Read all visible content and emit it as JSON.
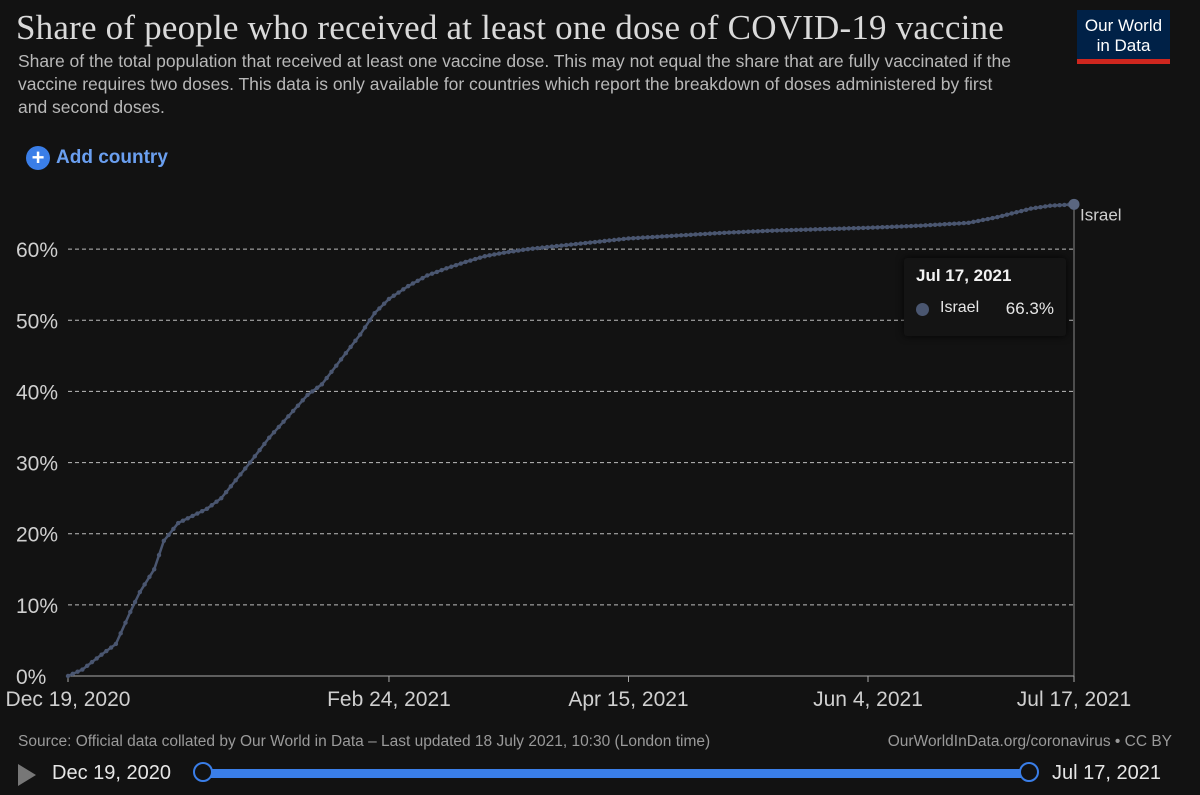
{
  "header": {
    "title": "Share of people who received at least one dose of COVID-19 vaccine",
    "subtitle": "Share of the total population that received at least one vaccine dose. This may not equal the share that are fully vaccinated if the vaccine requires two doses. This data is only available for countries which report the breakdown of doses administered by first and second doses.",
    "logo_line1": "Our World",
    "logo_line2": "in Data"
  },
  "controls": {
    "add_country_label": "Add country",
    "plus_icon": "plus-circle-icon"
  },
  "tooltip": {
    "date": "Jul 17, 2021",
    "series": "Israel",
    "value": "66.3%"
  },
  "footer": {
    "source": "Source: Official data collated by Our World in Data – Last updated 18 July 2021, 10:30 (London time)",
    "link": "OurWorldInData.org/coronavirus • CC BY"
  },
  "timeline": {
    "start_label": "Dec 19, 2020",
    "end_label": "Jul 17, 2021",
    "play_icon": "play-icon",
    "start_fraction": 0,
    "end_fraction": 1
  },
  "colors": {
    "line": "#4a5670",
    "grid": "#bdbdbd",
    "accent": "#3a7ee8",
    "logo_bg": "#002147",
    "logo_bar": "#ce261e"
  },
  "chart_data": {
    "type": "line",
    "title": "Share of people who received at least one dose of COVID-19 vaccine",
    "x_type": "date",
    "x_range": [
      "2020-12-19",
      "2021-07-17"
    ],
    "x_ticks": [
      "Dec 19, 2020",
      "Feb 24, 2021",
      "Apr 15, 2021",
      "Jun 4, 2021",
      "Jul 17, 2021"
    ],
    "x_tick_dates": [
      "2020-12-19",
      "2021-02-24",
      "2021-04-15",
      "2021-06-04",
      "2021-07-17"
    ],
    "ylim": [
      0,
      70
    ],
    "y_ticks": [
      0,
      10,
      20,
      30,
      40,
      50,
      60
    ],
    "y_tick_labels": [
      "0%",
      "10%",
      "20%",
      "30%",
      "40%",
      "50%",
      "60%"
    ],
    "grid": "horizontal dashed",
    "series": [
      {
        "name": "Israel",
        "end_label": "Israel",
        "points": [
          [
            "2020-12-19",
            0
          ],
          [
            "2020-12-22",
            0.9
          ],
          [
            "2020-12-26",
            3.0
          ],
          [
            "2020-12-29",
            4.5
          ],
          [
            "2021-01-01",
            9.0
          ],
          [
            "2021-01-03",
            11.8
          ],
          [
            "2021-01-06",
            15.0
          ],
          [
            "2021-01-08",
            19.0
          ],
          [
            "2021-01-11",
            21.5
          ],
          [
            "2021-01-14",
            22.5
          ],
          [
            "2021-01-17",
            23.5
          ],
          [
            "2021-01-20",
            25.0
          ],
          [
            "2021-01-23",
            27.5
          ],
          [
            "2021-01-26",
            30.0
          ],
          [
            "2021-01-30",
            33.5
          ],
          [
            "2021-02-03",
            36.5
          ],
          [
            "2021-02-07",
            39.5
          ],
          [
            "2021-02-10",
            41.0
          ],
          [
            "2021-02-14",
            44.5
          ],
          [
            "2021-02-18",
            48.0
          ],
          [
            "2021-02-21",
            51.0
          ],
          [
            "2021-02-24",
            53.0
          ],
          [
            "2021-02-28",
            54.8
          ],
          [
            "2021-03-04",
            56.3
          ],
          [
            "2021-03-08",
            57.3
          ],
          [
            "2021-03-12",
            58.2
          ],
          [
            "2021-03-16",
            59.0
          ],
          [
            "2021-03-20",
            59.5
          ],
          [
            "2021-03-25",
            60.0
          ],
          [
            "2021-04-01",
            60.5
          ],
          [
            "2021-04-08",
            61.0
          ],
          [
            "2021-04-15",
            61.5
          ],
          [
            "2021-04-25",
            61.9
          ],
          [
            "2021-05-05",
            62.3
          ],
          [
            "2021-05-15",
            62.6
          ],
          [
            "2021-05-25",
            62.8
          ],
          [
            "2021-06-04",
            63.0
          ],
          [
            "2021-06-15",
            63.3
          ],
          [
            "2021-06-25",
            63.7
          ],
          [
            "2021-07-01",
            64.5
          ],
          [
            "2021-07-08",
            65.7
          ],
          [
            "2021-07-12",
            66.1
          ],
          [
            "2021-07-17",
            66.3
          ]
        ]
      }
    ]
  }
}
